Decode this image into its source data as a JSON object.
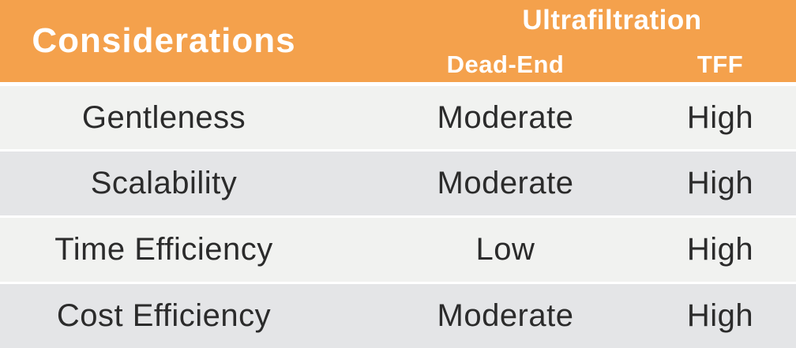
{
  "chart_data": {
    "type": "table",
    "column_group": "Ultrafiltration",
    "columns": [
      "Considerations",
      "Dead-End",
      "TFF"
    ],
    "rows": [
      [
        "Gentleness",
        "Moderate",
        "High"
      ],
      [
        "Scalability",
        "Moderate",
        "High"
      ],
      [
        "Time Efficiency",
        "Low",
        "High"
      ],
      [
        "Cost Efficiency",
        "Moderate",
        "High"
      ]
    ]
  },
  "colors": {
    "header_bg": "#F4A14C",
    "row_light": "#F1F2F0",
    "row_dark": "#E4E5E7",
    "header_text": "#FFFFFF",
    "body_text": "#2B2B2B"
  }
}
